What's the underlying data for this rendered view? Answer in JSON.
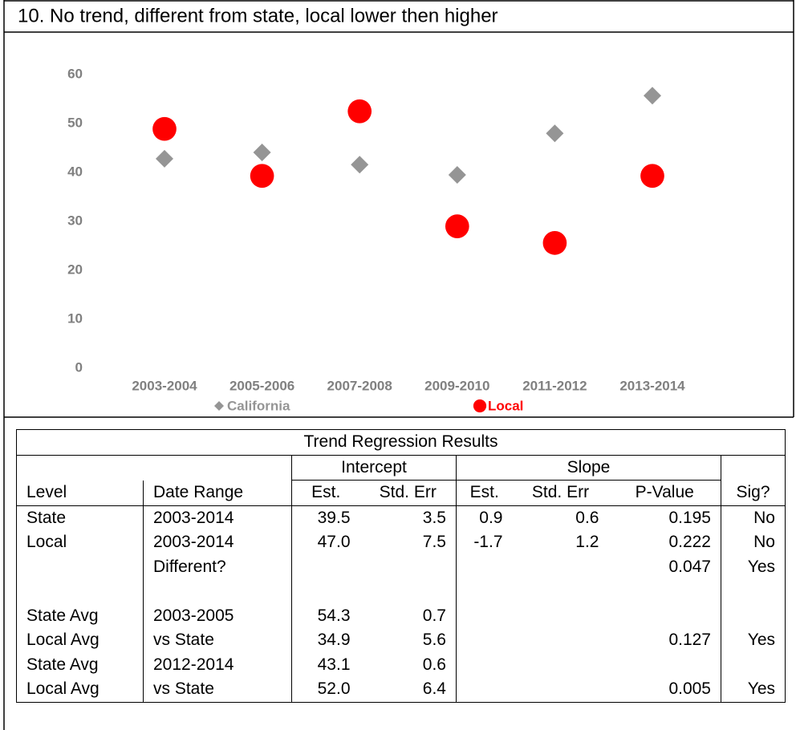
{
  "chart_data": {
    "type": "scatter",
    "title": "10. No trend, different from state, local lower then higher",
    "categories": [
      "2003-2004",
      "2005-2006",
      "2007-2008",
      "2009-2010",
      "2011-2012",
      "2013-2014"
    ],
    "series": [
      {
        "name": "California",
        "color": "#959595",
        "marker": "diamond",
        "values": [
          42.8,
          44.1,
          41.6,
          39.5,
          48.0,
          55.7
        ]
      },
      {
        "name": "Local",
        "color": "#ff0000",
        "marker": "circle",
        "values": [
          48.9,
          39.3,
          52.5,
          29.0,
          25.6,
          39.3
        ]
      }
    ],
    "ylim": [
      0,
      60
    ],
    "yticks": [
      0,
      10,
      20,
      30,
      40,
      50,
      60
    ],
    "grid": false,
    "legend": "bottom"
  },
  "table": {
    "title": "Trend Regression Results",
    "group_headers": [
      "Intercept",
      "Slope"
    ],
    "columns": [
      "Level",
      "Date Range",
      "Est.",
      "Std. Err",
      "Est.",
      "Std. Err",
      "P-Value",
      "Sig?"
    ],
    "rows": [
      [
        "State",
        "2003-2014",
        "39.5",
        "3.5",
        "0.9",
        "0.6",
        "0.195",
        "No"
      ],
      [
        "Local",
        "2003-2014",
        "47.0",
        "7.5",
        "-1.7",
        "1.2",
        "0.222",
        "No"
      ],
      [
        null,
        "Different?",
        null,
        null,
        null,
        null,
        "0.047",
        "Yes"
      ],
      [
        null,
        null,
        null,
        null,
        null,
        null,
        null,
        null
      ],
      [
        "State Avg",
        "2003-2005",
        "54.3",
        "0.7",
        null,
        null,
        null,
        null
      ],
      [
        "Local Avg",
        "vs State",
        "34.9",
        "5.6",
        null,
        null,
        "0.127",
        "Yes"
      ],
      [
        "State Avg",
        "2012-2014",
        "43.1",
        "0.6",
        null,
        null,
        null,
        null
      ],
      [
        "Local Avg",
        "vs State",
        "52.0",
        "6.4",
        null,
        null,
        "0.005",
        "Yes"
      ]
    ]
  }
}
